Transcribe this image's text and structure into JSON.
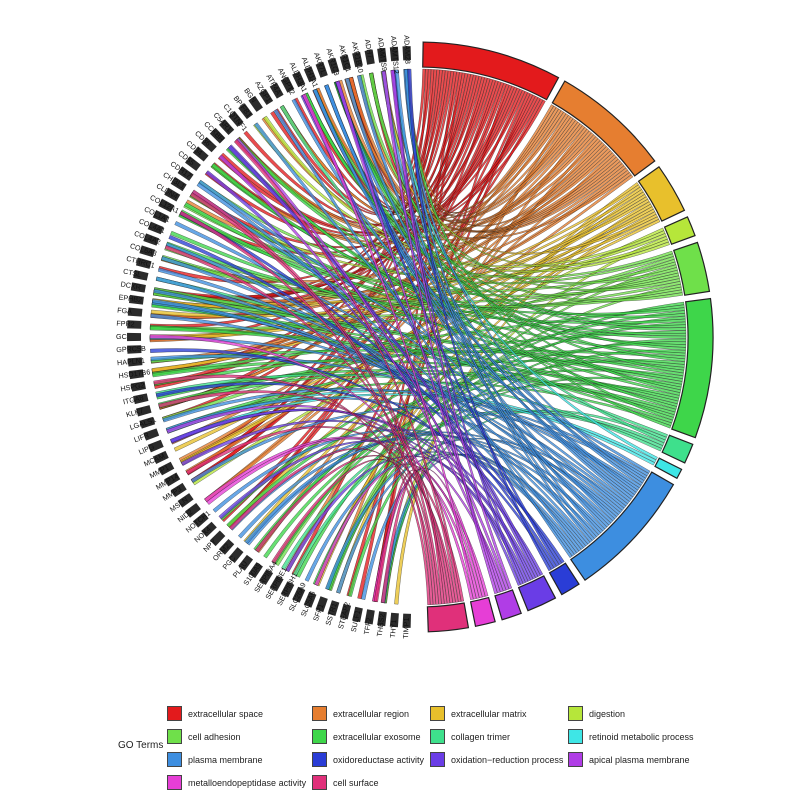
{
  "chart_data": {
    "type": "chord",
    "genes": [
      "ADAM28",
      "ADAMTS12",
      "ADAMTS9",
      "ADH7",
      "AKR1B10",
      "AKR1C1",
      "AKR1C3",
      "AKR7L",
      "ALDH1A1",
      "ALDH3A1",
      "ANGPT2",
      "ATP4A",
      "AZGP1",
      "BGN",
      "BPIFB1",
      "C1QTNF1",
      "C5AR1",
      "CCKBR",
      "CD36",
      "CD34",
      "CD55",
      "CDH17",
      "CHI3L1",
      "CLDN4",
      "COL12A1",
      "COL1A1",
      "COL4A1",
      "COL4A2",
      "COL6A3",
      "CTHRC1",
      "CTSL",
      "DCXR",
      "EPHB2",
      "FGA",
      "FPR2",
      "GC",
      "GPRC5B",
      "HAPLN1",
      "HSD17B6",
      "HSPG2",
      "ITGA8",
      "KLK7",
      "LGALS1",
      "LIFR",
      "LIPG",
      "MCAM",
      "MMP1",
      "MMP14",
      "MMP3",
      "MSLN",
      "NID2",
      "NOTCH1",
      "NOX4",
      "NPY",
      "ORM2",
      "PGC",
      "PLAU",
      "S100A9",
      "SERPINA4",
      "SERPINE1",
      "SERPINH1",
      "SLC26A9",
      "SLC5A6",
      "SFP1",
      "SSTR1",
      "STEAP2",
      "SULF1",
      "TFF2",
      "THBS2",
      "THY1",
      "TIMP1"
    ],
    "terms": [
      {
        "name": "extracellular space",
        "color": "#e31a1c",
        "weight": 14
      },
      {
        "name": "extracellular region",
        "color": "#e67e30",
        "weight": 12
      },
      {
        "name": "extracellular matrix",
        "color": "#e8c02c",
        "weight": 5
      },
      {
        "name": "digestion",
        "color": "#b6e63a",
        "weight": 2
      },
      {
        "name": "cell adhesion",
        "color": "#6fe04a",
        "weight": 5
      },
      {
        "name": "extracellular exosome",
        "color": "#3ed64a",
        "weight": 14
      },
      {
        "name": "collagen trimer",
        "color": "#3ee08c",
        "weight": 2
      },
      {
        "name": "retinoid metabolic process",
        "color": "#3ee6e6",
        "weight": 1
      },
      {
        "name": "plasma membrane",
        "color": "#3d8ee0",
        "weight": 13
      },
      {
        "name": "oxidoreductase activity",
        "color": "#2a3dd6",
        "weight": 2
      },
      {
        "name": "oxidation−reduction process",
        "color": "#6a3de6",
        "weight": 3
      },
      {
        "name": "apical plasma membrane",
        "color": "#b03de6",
        "weight": 2
      },
      {
        "name": "metalloendopeptidase activity",
        "color": "#e63ed6",
        "weight": 2
      },
      {
        "name": "cell surface",
        "color": "#e0307a",
        "weight": 4
      }
    ]
  },
  "legend": {
    "title": "GO Terms"
  }
}
